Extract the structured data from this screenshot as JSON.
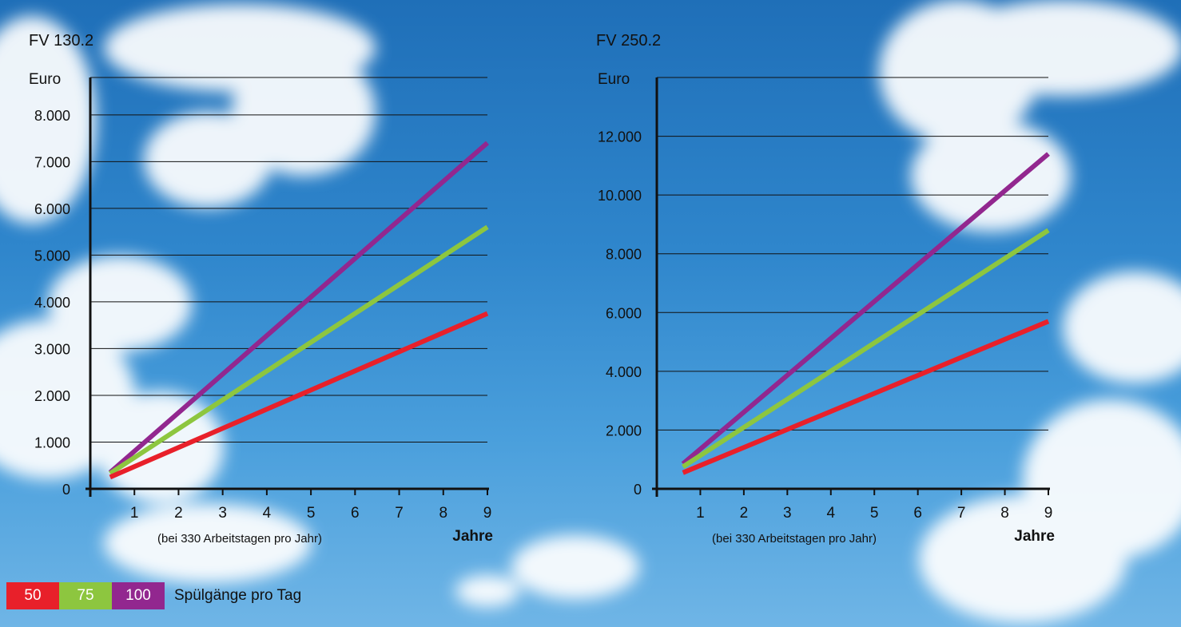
{
  "legend": {
    "items": [
      {
        "label": "50",
        "color": "#e8202a"
      },
      {
        "label": "75",
        "color": "#8dc63f"
      },
      {
        "label": "100",
        "color": "#92278f"
      }
    ],
    "caption": "Spülgänge pro Tag"
  },
  "chart_data": [
    {
      "type": "line",
      "title": "FV 130.2",
      "ylabel": "Euro",
      "xlabel": "Jahre",
      "note": "(bei 330 Arbeitstagen pro Jahr)",
      "xlim": [
        0,
        9
      ],
      "ylim": [
        0,
        8800
      ],
      "x_ticks": [
        "1",
        "2",
        "3",
        "4",
        "5",
        "6",
        "7",
        "8",
        "9"
      ],
      "y_ticks": [
        {
          "value": 0,
          "label": "0"
        },
        {
          "value": 1000,
          "label": "1.000"
        },
        {
          "value": 2000,
          "label": "2.000"
        },
        {
          "value": 3000,
          "label": "3.000"
        },
        {
          "value": 4000,
          "label": "4.000"
        },
        {
          "value": 5000,
          "label": "5.000"
        },
        {
          "value": 6000,
          "label": "6.000"
        },
        {
          "value": 7000,
          "label": "7.000"
        },
        {
          "value": 8000,
          "label": "8.000"
        }
      ],
      "grid": true,
      "series": [
        {
          "name": "100",
          "color": "#92278f",
          "points": [
            [
              0.45,
              350
            ],
            [
              9,
              7400
            ]
          ]
        },
        {
          "name": "75",
          "color": "#8dc63f",
          "points": [
            [
              0.45,
              330
            ],
            [
              9,
              5600
            ]
          ]
        },
        {
          "name": "50",
          "color": "#e8202a",
          "points": [
            [
              0.45,
              250
            ],
            [
              9,
              3750
            ]
          ]
        }
      ]
    },
    {
      "type": "line",
      "title": "FV 250.2",
      "ylabel": "Euro",
      "xlabel": "Jahre",
      "note": "(bei 330 Arbeitstagen pro Jahr)",
      "xlim": [
        0,
        9
      ],
      "ylim": [
        0,
        14000
      ],
      "x_ticks": [
        "1",
        "2",
        "3",
        "4",
        "5",
        "6",
        "7",
        "8",
        "9"
      ],
      "y_ticks": [
        {
          "value": 0,
          "label": "0"
        },
        {
          "value": 2000,
          "label": "2.000"
        },
        {
          "value": 4000,
          "label": "4.000"
        },
        {
          "value": 6000,
          "label": "6.000"
        },
        {
          "value": 8000,
          "label": "8.000"
        },
        {
          "value": 10000,
          "label": "10.000"
        },
        {
          "value": 12000,
          "label": "12.000"
        }
      ],
      "grid": true,
      "series": [
        {
          "name": "100",
          "color": "#92278f",
          "points": [
            [
              0.6,
              850
            ],
            [
              9,
              11400
            ]
          ]
        },
        {
          "name": "75",
          "color": "#8dc63f",
          "points": [
            [
              0.6,
              750
            ],
            [
              9,
              8800
            ]
          ]
        },
        {
          "name": "50",
          "color": "#e8202a",
          "points": [
            [
              0.6,
              550
            ],
            [
              9,
              5700
            ]
          ]
        }
      ]
    }
  ]
}
